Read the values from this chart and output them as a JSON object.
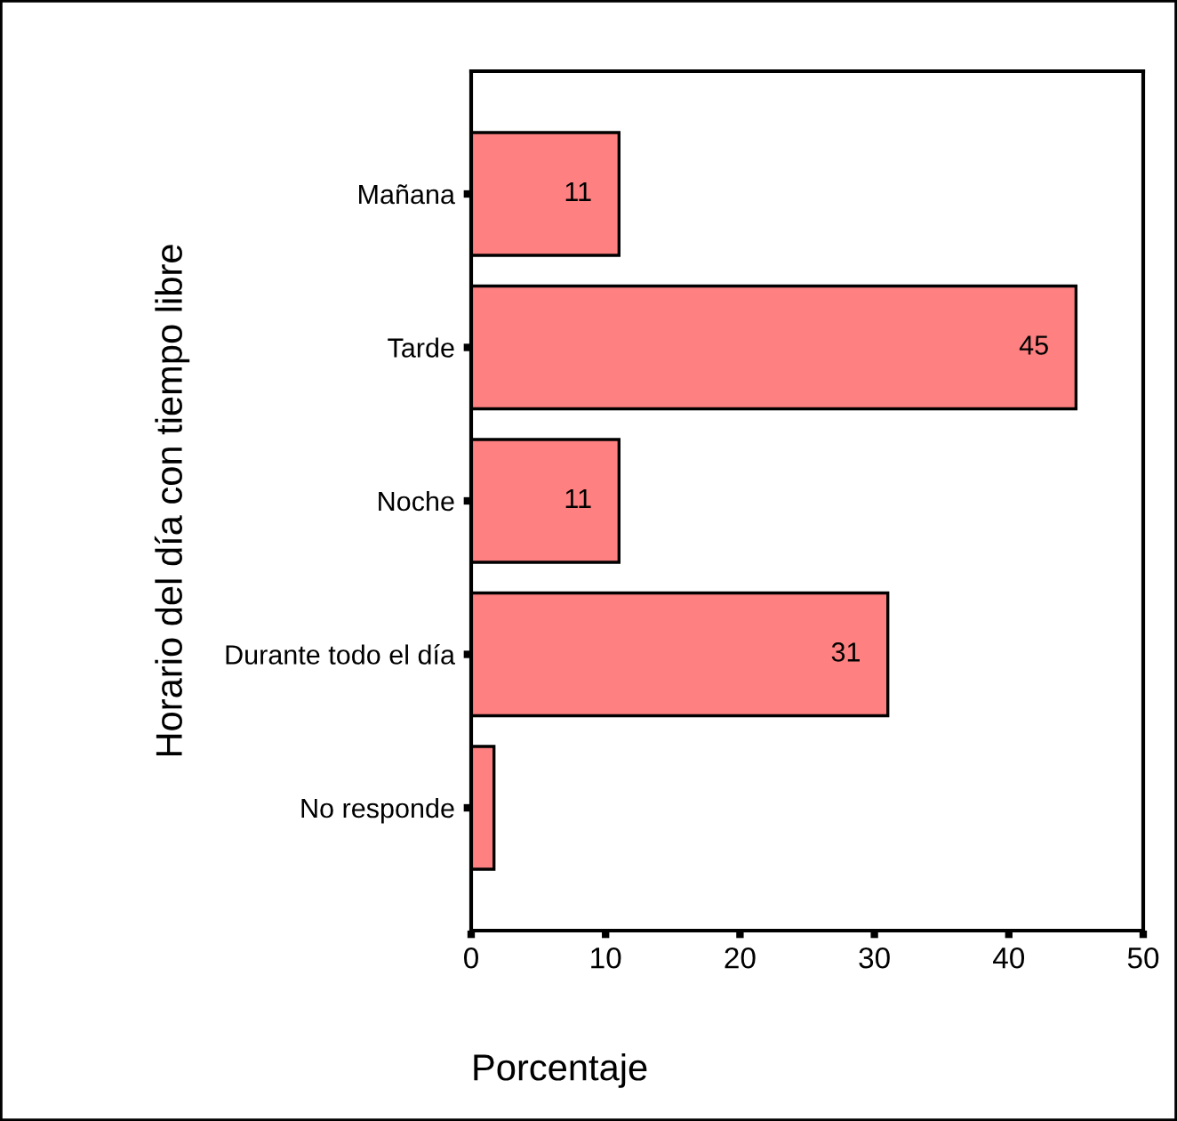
{
  "chart_data": {
    "type": "bar",
    "orientation": "horizontal",
    "xlabel": "Porcentaje",
    "ylabel": "Horario del día con tiempo libre",
    "categories": [
      "Mañana",
      "Tarde",
      "Noche",
      "Durante todo el día",
      "No responde"
    ],
    "values": [
      11,
      45,
      11,
      31,
      1.7
    ],
    "value_labels": [
      "11",
      "45",
      "11",
      "31",
      null
    ],
    "color": "#ff8080",
    "xlim": [
      0,
      50
    ],
    "xticks": [
      0,
      10,
      20,
      30,
      40,
      50
    ],
    "grid": false,
    "legend": false
  }
}
